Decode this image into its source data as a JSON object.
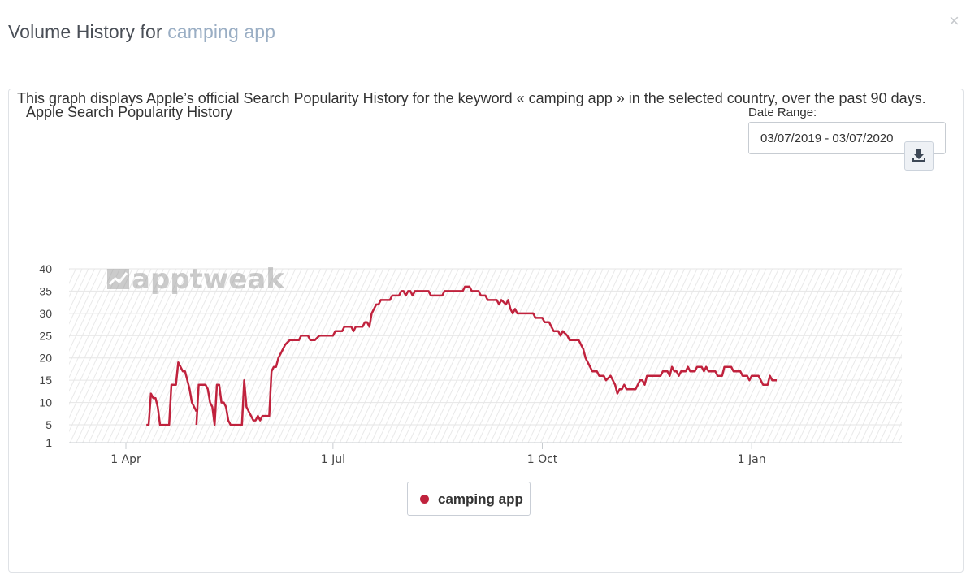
{
  "modal": {
    "title_prefix": "Volume History for",
    "title_keyword": "camping app",
    "close_symbol": "×"
  },
  "panel": {
    "title": "Apple Search Popularity History",
    "date_range_label": "Date Range:",
    "date_range_value": "03/07/2019 - 03/07/2020",
    "description": "This graph displays Apple’s official Search Popularity History for the keyword « camping app » in the selected country, over the past 90 days.",
    "download_icon": "download-icon"
  },
  "watermark": "apptweak",
  "colors": {
    "series": "#c0223d",
    "grid": "#e6e6e6",
    "hatch": "#e9e9e9"
  },
  "chart_data": {
    "type": "line",
    "title": "",
    "xlabel": "",
    "ylabel": "",
    "ylim": [
      1,
      40
    ],
    "yticks": [
      1,
      5,
      10,
      15,
      20,
      25,
      30,
      35,
      40
    ],
    "xlim": [
      "2019-03-07",
      "2020-03-07"
    ],
    "xticks": [
      {
        "date": "2019-04-01",
        "label": "1 Apr"
      },
      {
        "date": "2019-07-01",
        "label": "1 Jul"
      },
      {
        "date": "2019-10-01",
        "label": "1 Oct"
      },
      {
        "date": "2020-01-01",
        "label": "1 Jan"
      }
    ],
    "grid": true,
    "legend_position": "bottom-center",
    "series": [
      {
        "name": "camping app",
        "color": "#c0223d",
        "points": [
          [
            "2019-04-10",
            5
          ],
          [
            "2019-04-11",
            5
          ],
          [
            "2019-04-12",
            12
          ],
          [
            "2019-04-13",
            11
          ],
          [
            "2019-04-14",
            11
          ],
          [
            "2019-04-15",
            9
          ],
          [
            "2019-04-16",
            5
          ],
          [
            "2019-04-20",
            5
          ],
          [
            "2019-04-21",
            14
          ],
          [
            "2019-04-23",
            14
          ],
          [
            "2019-04-24",
            19
          ],
          [
            "2019-04-25",
            18
          ],
          [
            "2019-04-26",
            17
          ],
          [
            "2019-04-27",
            17
          ],
          [
            "2019-04-28",
            15
          ],
          [
            "2019-04-29",
            13
          ],
          [
            "2019-04-30",
            10
          ],
          [
            "2019-05-01",
            9
          ],
          [
            "2019-05-02",
            8
          ],
          null,
          [
            "2019-05-02",
            5
          ],
          [
            "2019-05-03",
            14
          ],
          [
            "2019-05-06",
            14
          ],
          [
            "2019-05-07",
            13
          ],
          [
            "2019-05-08",
            10
          ],
          [
            "2019-05-09",
            9
          ],
          [
            "2019-05-10",
            5
          ],
          [
            "2019-05-11",
            14
          ],
          [
            "2019-05-12",
            14
          ],
          [
            "2019-05-13",
            10
          ],
          [
            "2019-05-14",
            10
          ],
          [
            "2019-05-15",
            9
          ],
          [
            "2019-05-16",
            6
          ],
          [
            "2019-05-17",
            5
          ],
          [
            "2019-05-22",
            5
          ],
          [
            "2019-05-23",
            15
          ],
          [
            "2019-05-24",
            9
          ],
          [
            "2019-05-25",
            8
          ],
          [
            "2019-05-26",
            7
          ],
          [
            "2019-05-27",
            6
          ],
          [
            "2019-05-28",
            6
          ],
          [
            "2019-05-29",
            7
          ],
          [
            "2019-05-30",
            6
          ],
          [
            "2019-05-31",
            7
          ],
          [
            "2019-06-03",
            7
          ],
          [
            "2019-06-04",
            17
          ],
          [
            "2019-06-05",
            18
          ],
          [
            "2019-06-06",
            18
          ],
          [
            "2019-06-07",
            20
          ],
          [
            "2019-06-08",
            21
          ],
          [
            "2019-06-09",
            22
          ],
          [
            "2019-06-10",
            23
          ],
          [
            "2019-06-12",
            24
          ],
          [
            "2019-06-16",
            24
          ],
          [
            "2019-06-17",
            25
          ],
          [
            "2019-06-20",
            25
          ],
          [
            "2019-06-21",
            24
          ],
          [
            "2019-06-23",
            24
          ],
          [
            "2019-06-25",
            25
          ],
          [
            "2019-07-01",
            25
          ],
          [
            "2019-07-02",
            26
          ],
          [
            "2019-07-05",
            26
          ],
          [
            "2019-07-06",
            27
          ],
          [
            "2019-07-09",
            27
          ],
          [
            "2019-07-10",
            26
          ],
          [
            "2019-07-11",
            27
          ],
          [
            "2019-07-14",
            27
          ],
          [
            "2019-07-15",
            28
          ],
          [
            "2019-07-16",
            28
          ],
          [
            "2019-07-17",
            27
          ],
          [
            "2019-07-18",
            30
          ],
          [
            "2019-07-19",
            31
          ],
          [
            "2019-07-20",
            32
          ],
          [
            "2019-07-21",
            32
          ],
          [
            "2019-07-22",
            33
          ],
          [
            "2019-07-26",
            33
          ],
          [
            "2019-07-27",
            34
          ],
          [
            "2019-07-30",
            34
          ],
          [
            "2019-07-31",
            35
          ],
          [
            "2019-08-01",
            35
          ],
          [
            "2019-08-02",
            34
          ],
          [
            "2019-08-03",
            35
          ],
          [
            "2019-08-04",
            35
          ],
          [
            "2019-08-05",
            34
          ],
          [
            "2019-08-06",
            35
          ],
          [
            "2019-08-12",
            35
          ],
          [
            "2019-08-13",
            34
          ],
          [
            "2019-08-18",
            34
          ],
          [
            "2019-08-19",
            35
          ],
          [
            "2019-08-27",
            35
          ],
          [
            "2019-08-28",
            36
          ],
          [
            "2019-08-30",
            36
          ],
          [
            "2019-08-31",
            35
          ],
          [
            "2019-09-03",
            35
          ],
          [
            "2019-09-04",
            34
          ],
          [
            "2019-09-06",
            34
          ],
          [
            "2019-09-07",
            33
          ],
          [
            "2019-09-11",
            33
          ],
          [
            "2019-09-12",
            32
          ],
          [
            "2019-09-13",
            33
          ],
          [
            "2019-09-15",
            32
          ],
          [
            "2019-09-16",
            33
          ],
          [
            "2019-09-17",
            31
          ],
          [
            "2019-09-18",
            30
          ],
          [
            "2019-09-19",
            31
          ],
          [
            "2019-09-20",
            30
          ],
          [
            "2019-09-27",
            30
          ],
          [
            "2019-09-28",
            29
          ],
          [
            "2019-10-01",
            29
          ],
          [
            "2019-10-02",
            28
          ],
          [
            "2019-10-04",
            28
          ],
          [
            "2019-10-05",
            27
          ],
          [
            "2019-10-06",
            26
          ],
          [
            "2019-10-08",
            26
          ],
          [
            "2019-10-09",
            25
          ],
          [
            "2019-10-10",
            26
          ],
          [
            "2019-10-12",
            25
          ],
          [
            "2019-10-13",
            24
          ],
          [
            "2019-10-17",
            24
          ],
          [
            "2019-10-18",
            23
          ],
          [
            "2019-10-19",
            22
          ],
          [
            "2019-10-20",
            20
          ],
          [
            "2019-10-22",
            18
          ],
          [
            "2019-10-23",
            17
          ],
          [
            "2019-10-25",
            17
          ],
          [
            "2019-10-26",
            16
          ],
          [
            "2019-10-28",
            16
          ],
          [
            "2019-10-29",
            15
          ],
          [
            "2019-10-31",
            16
          ],
          [
            "2019-11-01",
            15
          ],
          [
            "2019-11-02",
            14
          ],
          [
            "2019-11-03",
            12
          ],
          [
            "2019-11-04",
            13
          ],
          [
            "2019-11-05",
            13
          ],
          [
            "2019-11-06",
            14
          ],
          [
            "2019-11-07",
            13
          ],
          [
            "2019-11-11",
            13
          ],
          [
            "2019-11-12",
            14
          ],
          [
            "2019-11-13",
            15
          ],
          [
            "2019-11-14",
            15
          ],
          [
            "2019-11-15",
            14
          ],
          [
            "2019-11-16",
            16
          ],
          [
            "2019-11-22",
            16
          ],
          [
            "2019-11-23",
            17
          ],
          [
            "2019-11-25",
            17
          ],
          [
            "2019-11-26",
            16
          ],
          [
            "2019-11-27",
            18
          ],
          [
            "2019-11-28",
            17
          ],
          [
            "2019-11-29",
            17
          ],
          [
            "2019-11-30",
            16
          ],
          [
            "2019-12-01",
            17
          ],
          [
            "2019-12-03",
            17
          ],
          [
            "2019-12-04",
            18
          ],
          [
            "2019-12-05",
            17
          ],
          [
            "2019-12-07",
            17
          ],
          [
            "2019-12-08",
            18
          ],
          [
            "2019-12-10",
            18
          ],
          [
            "2019-12-11",
            17
          ],
          [
            "2019-12-12",
            18
          ],
          [
            "2019-12-13",
            17
          ],
          [
            "2019-12-16",
            17
          ],
          [
            "2019-12-17",
            16
          ],
          [
            "2019-12-19",
            16
          ],
          [
            "2019-12-20",
            18
          ],
          [
            "2019-12-23",
            18
          ],
          [
            "2019-12-24",
            17
          ],
          [
            "2019-12-27",
            17
          ],
          [
            "2019-12-28",
            16
          ],
          [
            "2019-12-30",
            16
          ],
          [
            "2019-12-31",
            15
          ],
          [
            "2020-01-01",
            16
          ],
          [
            "2020-01-04",
            16
          ],
          [
            "2020-01-05",
            15
          ],
          [
            "2020-01-06",
            14
          ],
          [
            "2020-01-08",
            14
          ],
          [
            "2020-01-09",
            16
          ],
          [
            "2020-01-10",
            15
          ],
          [
            "2020-01-12",
            15
          ]
        ]
      }
    ]
  }
}
